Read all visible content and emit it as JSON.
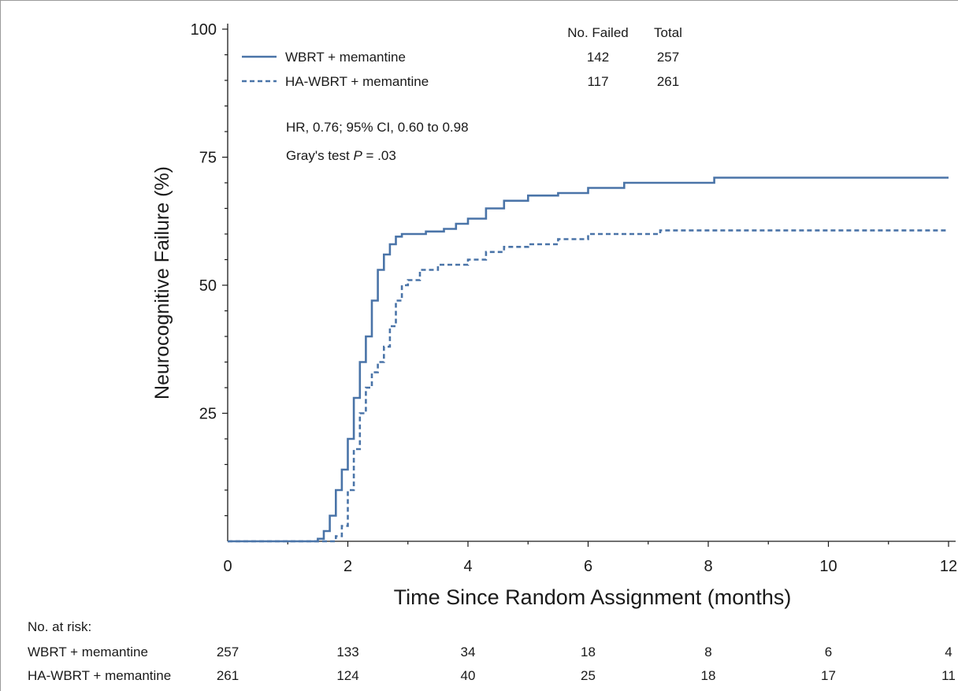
{
  "chart_data": {
    "type": "line",
    "xlabel": "Time Since Random Assignment (months)",
    "ylabel": "Neurocognitive Failure  (%)",
    "xlim": [
      0,
      12
    ],
    "ylim": [
      0,
      100
    ],
    "xticks": [
      "0",
      "2",
      "4",
      "6",
      "8",
      "10",
      "12"
    ],
    "yticks": [
      "25",
      "50",
      "75",
      "100"
    ],
    "legend": {
      "placement": "top-left",
      "header_failed": "No. Failed",
      "header_total": "Total"
    },
    "series": [
      {
        "name": "WBRT + memantine",
        "style": "solid",
        "color": "#4a74a8",
        "failed": "142",
        "total": "257",
        "x": [
          0,
          1.3,
          1.5,
          1.6,
          1.7,
          1.8,
          1.9,
          2.0,
          2.1,
          2.2,
          2.3,
          2.4,
          2.5,
          2.6,
          2.7,
          2.8,
          2.9,
          3.0,
          3.3,
          3.6,
          3.8,
          4.0,
          4.3,
          4.6,
          5.0,
          5.5,
          6.0,
          6.6,
          7.0,
          8.1,
          9.0,
          10.0,
          12.0
        ],
        "y": [
          0,
          0,
          0.5,
          2,
          5,
          10,
          14,
          20,
          28,
          35,
          40,
          47,
          53,
          56,
          58,
          59.5,
          60,
          60,
          60.5,
          61,
          62,
          63,
          65,
          66.5,
          67.5,
          68,
          69,
          70,
          70,
          71,
          71,
          71,
          71
        ]
      },
      {
        "name": "HA-WBRT + memantine",
        "style": "dashed",
        "color": "#4a74a8",
        "failed": "117",
        "total": "261",
        "x": [
          0,
          1.5,
          1.7,
          1.8,
          1.9,
          2.0,
          2.1,
          2.2,
          2.3,
          2.4,
          2.5,
          2.6,
          2.7,
          2.8,
          2.9,
          3.0,
          3.2,
          3.5,
          4.0,
          4.3,
          4.6,
          5.0,
          5.5,
          6.0,
          6.5,
          7.2,
          8.0,
          10.0,
          12.0
        ],
        "y": [
          0,
          0,
          0,
          1,
          3,
          10,
          18,
          25,
          30,
          33,
          35,
          38,
          42,
          47,
          50,
          51,
          53,
          54,
          55,
          56.5,
          57.5,
          58,
          59,
          60,
          60,
          60.7,
          60.7,
          60.7,
          60.7
        ]
      }
    ],
    "annotations": {
      "hr": "HR, 0.76; 95% CI, 0.60 to 0.98",
      "gray_prefix": "Gray's test ",
      "gray_p": "P",
      "gray_suffix": " = .03"
    }
  },
  "at_risk": {
    "title": "No. at risk:",
    "rows": [
      {
        "label": "WBRT + memantine",
        "values": [
          "257",
          "133",
          "34",
          "18",
          "8",
          "6",
          "4"
        ]
      },
      {
        "label": "HA-WBRT + memantine",
        "values": [
          "261",
          "124",
          "40",
          "25",
          "18",
          "17",
          "11"
        ]
      }
    ]
  }
}
